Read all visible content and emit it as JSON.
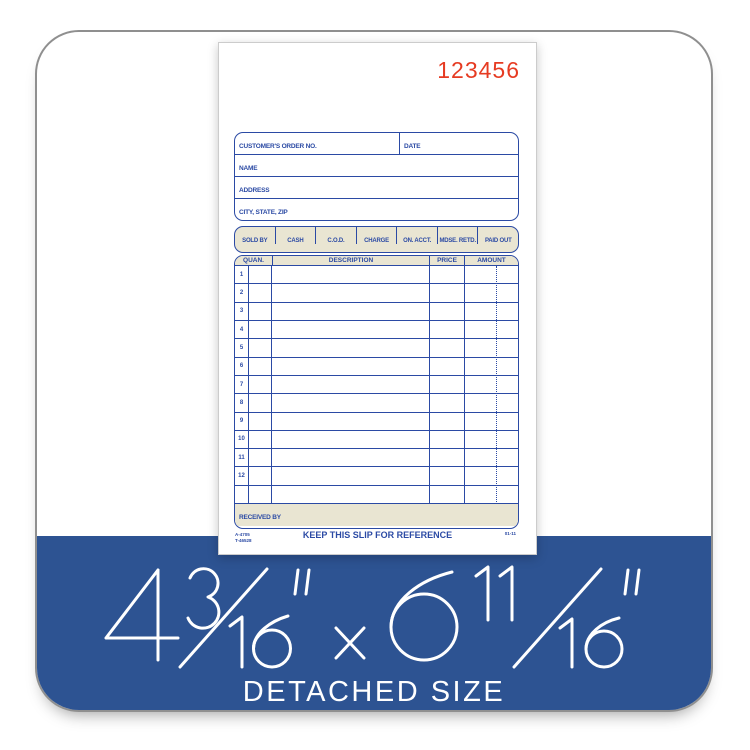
{
  "colors": {
    "ink": "#2b4aa4",
    "tan": "#e9e5d2",
    "red": "#e63b22",
    "banner_blue": "#2d5392",
    "card_border": "#8f8f8f"
  },
  "slip": {
    "number": "123456",
    "customer_fields": {
      "order_no": "CUSTOMER'S ORDER NO.",
      "date": "DATE",
      "name": "NAME",
      "address": "ADDRESS",
      "city": "CITY, STATE, ZIP"
    },
    "payment_options": [
      "SOLD BY",
      "CASH",
      "C.O.D.",
      "CHARGE",
      "ON. ACCT.",
      "MDSE. RETD.",
      "PAID OUT"
    ],
    "table": {
      "headers": [
        "QUAN.",
        "DESCRIPTION",
        "PRICE",
        "AMOUNT"
      ],
      "row_numbers": [
        "1",
        "2",
        "3",
        "4",
        "5",
        "6",
        "7",
        "8",
        "9",
        "10",
        "11",
        "12",
        ""
      ]
    },
    "received_by": "RECEIVED BY",
    "footer": {
      "form_code_1": "A-4705",
      "form_code_2": "T-46528",
      "center_note": "KEEP THIS SLIP FOR REFERENCE",
      "revision": "01-11"
    }
  },
  "banner": {
    "size_text": "4 3/16\" x 6 11/16\"",
    "size_label": "DETACHED SIZE"
  }
}
